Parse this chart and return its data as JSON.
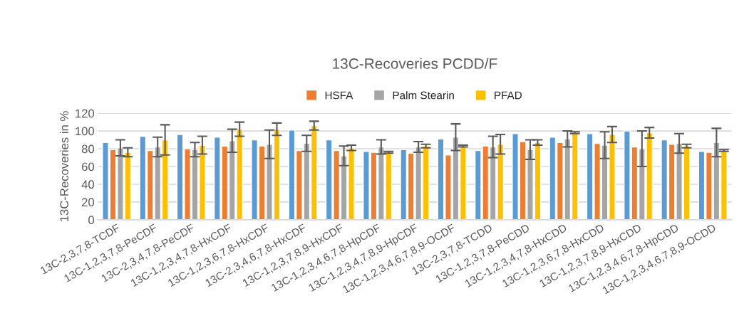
{
  "chart_data": {
    "type": "bar",
    "title": "13C-Recoveries PCDD/F",
    "ylabel": "13C-Recoveries in %",
    "categories": [
      "13C-2,3,7,8-TCDF",
      "13C-1,2,3,7,8-PeCDF",
      "13C-2,3,4,7,8-PeCDF",
      "13C-1,2,3,4,7,8-HxCDF",
      "13C-1,2,3,6,7,8-HxCDF",
      "13C-2,3,4,6,7,8-HxCDF",
      "13C-1,2,3,7,8,9-HxCDF",
      "13C-1,2,3,4,6,7,8-HpCDF",
      "13C-1,2,3,4,7,8,9-HpCDF",
      "13C-1,2,3,4,6,7,8,9-OCDF",
      "13C-2,3,7,8-TCDD",
      "13C-1,2,3,7,8-PeCDD",
      "13C-1,2,3,4,7,8-HxCDD",
      "13C-1,2,3,6,7,8-HxCDD",
      "13C-1,2,3,7,8,9-HxCDD",
      "13C-1,2,3,4,6,7,8-HpCDD",
      "13C-1,2,3,4,6,7,8,9-OCDD"
    ],
    "series": [
      {
        "color": "#5b9bd5",
        "values": [
          87,
          94,
          96,
          93,
          90,
          101,
          90,
          77,
          79,
          91,
          78,
          97,
          93,
          97,
          100,
          90,
          77
        ]
      },
      {
        "name": "HSFA",
        "color": "#ed7d31",
        "values": [
          79,
          78,
          80,
          83,
          83,
          78,
          78,
          76,
          75,
          73,
          83,
          88,
          87,
          86,
          82,
          85,
          76
        ]
      },
      {
        "name": "Palm Stearin",
        "color": "#a5a5a5",
        "values": [
          81,
          82,
          79,
          89,
          85,
          86,
          72,
          82,
          82,
          93,
          82,
          79,
          91,
          84,
          80,
          86,
          87
        ],
        "errors": [
          9,
          11,
          8,
          13,
          16,
          9,
          11,
          8,
          6,
          15,
          12,
          11,
          9,
          15,
          20,
          11,
          16
        ]
      },
      {
        "name": "PFAD",
        "color": "#ffc000",
        "values": [
          76,
          90,
          84,
          102,
          102,
          106,
          81,
          76,
          83,
          83,
          85,
          87,
          98,
          96,
          98,
          83,
          78
        ],
        "errors": [
          5,
          17,
          10,
          8,
          7,
          5,
          3,
          1,
          2,
          1,
          11,
          3,
          1,
          9,
          6,
          2,
          1
        ]
      }
    ],
    "ylim": [
      0,
      120
    ],
    "yticks": [
      0,
      20,
      40,
      60,
      80,
      100,
      120
    ],
    "grid": "y",
    "legend": "top"
  }
}
